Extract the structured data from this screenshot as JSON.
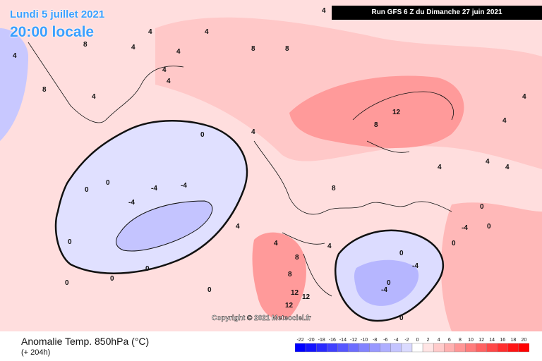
{
  "header": {
    "date": "Lundi 5 juillet 2021",
    "time": "20:00 locale",
    "run": "Run GFS 6 Z du Dimanche 27 juin 2021"
  },
  "copyright": "Copyright © 2021 Meteociel.fr",
  "footer": {
    "title": "Anomalie Temp. 850hPa (°C)",
    "subtitle": "(+ 204h)"
  },
  "legend": {
    "ticks": [
      "-22",
      "-20",
      "-18",
      "-16",
      "-14",
      "-12",
      "-10",
      "-8",
      "-6",
      "-4",
      "-2",
      "0",
      "2",
      "4",
      "6",
      "8",
      "10",
      "12",
      "14",
      "16",
      "18",
      "20"
    ],
    "colors": [
      "#0000ff",
      "#1414ff",
      "#2a2aff",
      "#4040ff",
      "#5656ff",
      "#6c6cff",
      "#8282ff",
      "#9898ff",
      "#aeaeff",
      "#c4c4ff",
      "#dadaff",
      "#ffffff",
      "#ffe4e4",
      "#ffcaca",
      "#ffb0b0",
      "#ff9696",
      "#ff7c7c",
      "#ff6262",
      "#ff4848",
      "#ff2e2e",
      "#ff1414",
      "#ff0000"
    ]
  },
  "contour_labels": [
    "4",
    "8",
    "4",
    "4",
    "4",
    "8",
    "8",
    "4",
    "8",
    "4",
    "4",
    "4",
    "0",
    "4",
    "8",
    "12",
    "8",
    "4",
    "4",
    "4",
    "4",
    "0",
    "0",
    "-4",
    "-4",
    "-4",
    "0",
    "0",
    "0",
    "0",
    "0",
    "4",
    "4",
    "8",
    "8",
    "12",
    "12",
    "12",
    "4",
    "0",
    "0",
    "-4",
    "-4",
    "-4",
    "0",
    "0",
    "0",
    "0",
    "4",
    "4"
  ]
}
